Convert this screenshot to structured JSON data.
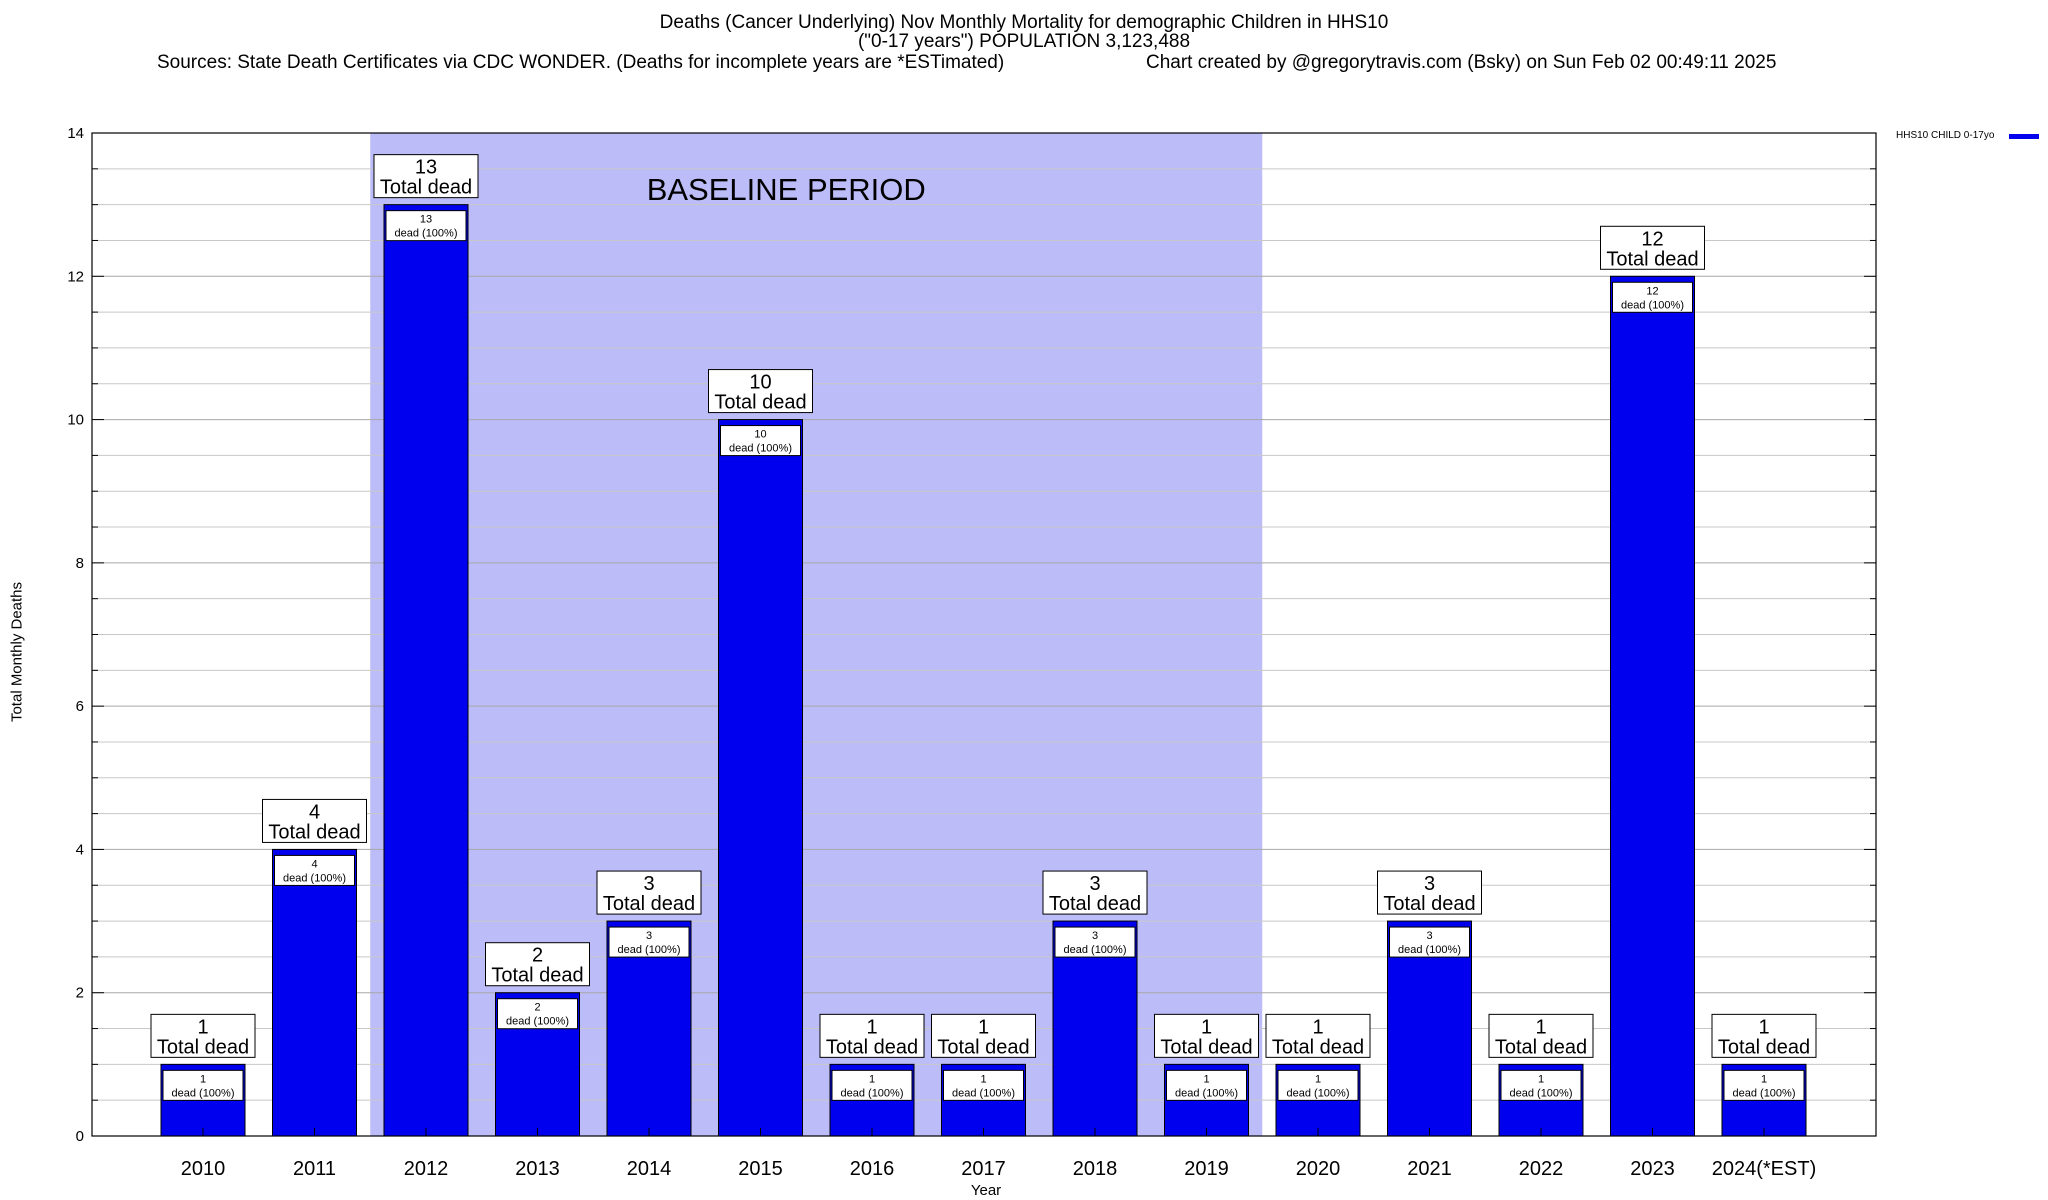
{
  "header": {
    "title_line1": "Deaths (Cancer Underlying) Nov Monthly Mortality for demographic Children in HHS10",
    "title_line2": "(\"0-17 years\") POPULATION 3,123,488",
    "sources": "Sources: State Death Certificates via CDC WONDER. (Deaths for incomplete years are *ESTimated)",
    "credit": "Chart created by @gregorytravis.com (Bsky) on Sun Feb 02 00:49:11 2025"
  },
  "chart_data": {
    "type": "bar",
    "xlabel": "Year",
    "ylabel": "Total Monthly Deaths",
    "ylim": [
      0,
      14
    ],
    "yticks": [
      0,
      2,
      4,
      6,
      8,
      10,
      12,
      14
    ],
    "grid": true,
    "legend_position": "top-right",
    "categories": [
      "2010",
      "2011",
      "2012",
      "2013",
      "2014",
      "2015",
      "2016",
      "2017",
      "2018",
      "2019",
      "2020",
      "2021",
      "2022",
      "2023",
      "2024(*EST)"
    ],
    "series": [
      {
        "name": "HHS10 CHILD 0-17yo",
        "color": "#0000ee",
        "values": [
          1,
          4,
          13,
          2,
          3,
          10,
          1,
          1,
          3,
          1,
          1,
          3,
          1,
          12,
          1
        ]
      }
    ],
    "bar_top_label_suffix": "Total dead",
    "bar_inner_label_suffix": "dead (100%)",
    "baseline_period": {
      "label": "BASELINE PERIOD",
      "from": "2012",
      "to": "2019",
      "color": "#bcbcf8"
    }
  }
}
